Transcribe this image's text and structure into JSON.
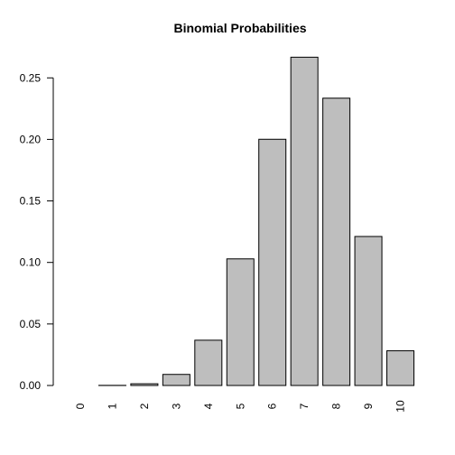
{
  "chart_data": {
    "type": "bar",
    "title": "Binomial Probabilities",
    "xlabel": "",
    "ylabel": "",
    "categories": [
      "0",
      "1",
      "2",
      "3",
      "4",
      "5",
      "6",
      "7",
      "8",
      "9",
      "10"
    ],
    "values": [
      0.0,
      0.0001,
      0.0014,
      0.009,
      0.0368,
      0.1029,
      0.2001,
      0.2668,
      0.2335,
      0.1211,
      0.0282
    ],
    "ylim": [
      0,
      0.27
    ],
    "yticks": [
      0.0,
      0.05,
      0.1,
      0.15,
      0.2,
      0.25
    ],
    "ytick_labels": [
      "0.00",
      "0.05",
      "0.10",
      "0.15",
      "0.20",
      "0.25"
    ],
    "grid": false,
    "bar_color": "#bebebe",
    "bar_border_color": "#000000"
  }
}
